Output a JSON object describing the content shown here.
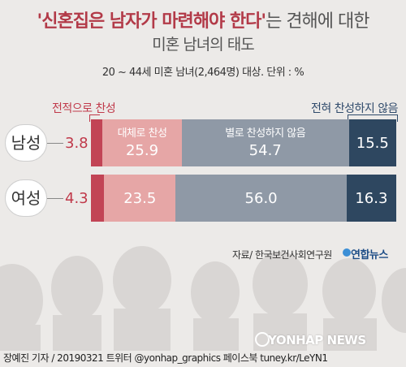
{
  "title": {
    "highlight": "'신혼집은 남자가 마련해야 한다'",
    "rest": "는 견해에 대한",
    "line2": "미혼 남녀의 태도"
  },
  "subtitle": "20 ~ 44세 미혼 남녀(2,464명) 대상. 단위 : %",
  "captions": {
    "left": "전적으로 찬성",
    "right": "전혀 찬성하지 않음"
  },
  "source": "자료/ 한국보건사회연구원",
  "agency": "연합뉴스",
  "watermark": "YONHAP NEWS",
  "credit": "장예진 기자 / 20190321 트위터 @yonhap_graphics  페이스북 tuney.kr/LeYN1",
  "colors": {
    "strongly_agree": "#c24455",
    "mostly_agree": "#e6a6a6",
    "mostly_disagree": "#8f99a6",
    "strongly_disagree": "#2e4760",
    "background": "#eceae8"
  },
  "chart_data": {
    "type": "bar",
    "stacked": true,
    "orientation": "horizontal",
    "title": "'신혼집은 남자가 마련해야 한다'는 견해에 대한 미혼 남녀의 태도",
    "categories": [
      "남성",
      "여성"
    ],
    "series": [
      {
        "name": "전적으로 찬성",
        "values": [
          3.8,
          4.3
        ]
      },
      {
        "name": "대체로 찬성",
        "values": [
          25.9,
          23.5
        ]
      },
      {
        "name": "별로 찬성하지 않음",
        "values": [
          54.7,
          56.0
        ]
      },
      {
        "name": "전혀 찬성하지 않음",
        "values": [
          15.5,
          16.3
        ]
      }
    ],
    "value_labels": [
      [
        "3.8",
        "25.9",
        "54.7",
        "15.5"
      ],
      [
        "4.3",
        "23.5",
        "56.0",
        "16.3"
      ]
    ],
    "unit": "%"
  }
}
